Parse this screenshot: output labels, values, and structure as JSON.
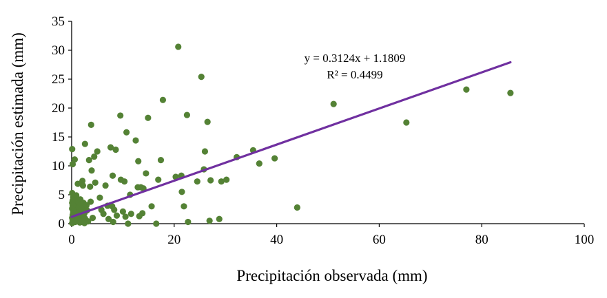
{
  "chart_data": {
    "type": "scatter",
    "xlabel": "Precipitación observada (mm)",
    "ylabel": "Precipitación estimada (mm)",
    "xlim": [
      0,
      100
    ],
    "ylim": [
      0,
      35
    ],
    "x_ticks": [
      0,
      20,
      40,
      60,
      80,
      100
    ],
    "y_ticks": [
      0,
      5,
      10,
      15,
      20,
      25,
      30,
      35
    ],
    "x_tick_labels": [
      "0",
      "20",
      "40",
      "60",
      "80",
      "100"
    ],
    "y_tick_labels": [
      "0",
      "5",
      "10",
      "15",
      "20",
      "25",
      "30",
      "35"
    ],
    "grid": false,
    "legend": "none",
    "point_color": "#548235",
    "trendline_color": "#7030a0",
    "trendline": {
      "slope": 0.3124,
      "intercept": 1.1809,
      "x_range": [
        0,
        85.6
      ]
    },
    "annotations": {
      "equation": "y = 0.3124x + 1.1809",
      "r2": "R² = 0.4499"
    },
    "points": [
      [
        0.1,
        12.9
      ],
      [
        0.2,
        10.3
      ],
      [
        0.6,
        11.1
      ],
      [
        0.1,
        5.3
      ],
      [
        0.3,
        4.6
      ],
      [
        0.2,
        4.0
      ],
      [
        0.1,
        3.6
      ],
      [
        0.2,
        3.1
      ],
      [
        0.1,
        2.6
      ],
      [
        0.3,
        2.0
      ],
      [
        0.2,
        1.5
      ],
      [
        0.1,
        1.0
      ],
      [
        0.2,
        0.5
      ],
      [
        0.1,
        0.1
      ],
      [
        0.5,
        3.4
      ],
      [
        0.6,
        2.7
      ],
      [
        0.6,
        1.8
      ],
      [
        0.5,
        1.0
      ],
      [
        0.7,
        0.3
      ],
      [
        0.9,
        4.9
      ],
      [
        1.0,
        4.0
      ],
      [
        0.9,
        3.2
      ],
      [
        1.0,
        2.3
      ],
      [
        1.0,
        1.4
      ],
      [
        1.1,
        0.6
      ],
      [
        1.2,
        6.9
      ],
      [
        1.3,
        3.8
      ],
      [
        1.4,
        2.9
      ],
      [
        1.5,
        2.0
      ],
      [
        1.5,
        1.1
      ],
      [
        1.6,
        0.2
      ],
      [
        1.7,
        4.2
      ],
      [
        1.8,
        3.4
      ],
      [
        1.9,
        2.5
      ],
      [
        1.8,
        1.6
      ],
      [
        2.0,
        0.8
      ],
      [
        2.1,
        7.4
      ],
      [
        2.2,
        6.6
      ],
      [
        2.3,
        3.6
      ],
      [
        2.4,
        2.7
      ],
      [
        2.5,
        1.8
      ],
      [
        2.6,
        0.9
      ],
      [
        2.5,
        0.1
      ],
      [
        2.6,
        13.8
      ],
      [
        2.9,
        3.2
      ],
      [
        3.0,
        2.3
      ],
      [
        3.2,
        0.4
      ],
      [
        3.4,
        11.0
      ],
      [
        3.6,
        6.4
      ],
      [
        3.7,
        3.8
      ],
      [
        3.8,
        17.1
      ],
      [
        3.9,
        9.2
      ],
      [
        4.1,
        1.0
      ],
      [
        4.4,
        11.6
      ],
      [
        4.6,
        7.1
      ],
      [
        5.0,
        12.5
      ],
      [
        5.5,
        4.5
      ],
      [
        5.8,
        2.4
      ],
      [
        6.2,
        1.7
      ],
      [
        6.6,
        6.6
      ],
      [
        7.0,
        3.1
      ],
      [
        7.2,
        0.8
      ],
      [
        7.6,
        13.2
      ],
      [
        7.9,
        3.0
      ],
      [
        8.0,
        8.3
      ],
      [
        8.1,
        0.3
      ],
      [
        8.3,
        2.4
      ],
      [
        8.6,
        12.8
      ],
      [
        8.8,
        1.4
      ],
      [
        9.5,
        18.7
      ],
      [
        9.6,
        7.6
      ],
      [
        10.0,
        2.1
      ],
      [
        10.3,
        7.3
      ],
      [
        10.5,
        1.2
      ],
      [
        10.7,
        15.8
      ],
      [
        11.0,
        0.0
      ],
      [
        11.4,
        5.0
      ],
      [
        11.6,
        1.7
      ],
      [
        12.5,
        14.4
      ],
      [
        12.9,
        6.3
      ],
      [
        13.0,
        10.8
      ],
      [
        13.2,
        1.3
      ],
      [
        13.5,
        6.3
      ],
      [
        13.8,
        1.8
      ],
      [
        14.0,
        6.1
      ],
      [
        14.5,
        8.7
      ],
      [
        14.9,
        18.3
      ],
      [
        15.6,
        3.0
      ],
      [
        16.5,
        0.0
      ],
      [
        16.9,
        7.6
      ],
      [
        17.4,
        11.0
      ],
      [
        17.8,
        21.4
      ],
      [
        20.3,
        8.1
      ],
      [
        20.8,
        30.6
      ],
      [
        21.4,
        8.3
      ],
      [
        21.5,
        5.5
      ],
      [
        21.9,
        3.0
      ],
      [
        22.5,
        18.8
      ],
      [
        22.7,
        0.3
      ],
      [
        24.5,
        7.3
      ],
      [
        25.3,
        25.4
      ],
      [
        25.8,
        9.4
      ],
      [
        26.0,
        12.5
      ],
      [
        26.5,
        17.6
      ],
      [
        26.9,
        0.5
      ],
      [
        27.1,
        7.5
      ],
      [
        28.8,
        0.8
      ],
      [
        29.2,
        7.3
      ],
      [
        30.2,
        7.6
      ],
      [
        32.2,
        11.5
      ],
      [
        35.4,
        12.7
      ],
      [
        36.6,
        10.4
      ],
      [
        39.6,
        11.3
      ],
      [
        44.0,
        2.8
      ],
      [
        51.1,
        20.7
      ],
      [
        65.3,
        17.5
      ],
      [
        77.0,
        23.2
      ],
      [
        85.6,
        22.6
      ]
    ]
  }
}
